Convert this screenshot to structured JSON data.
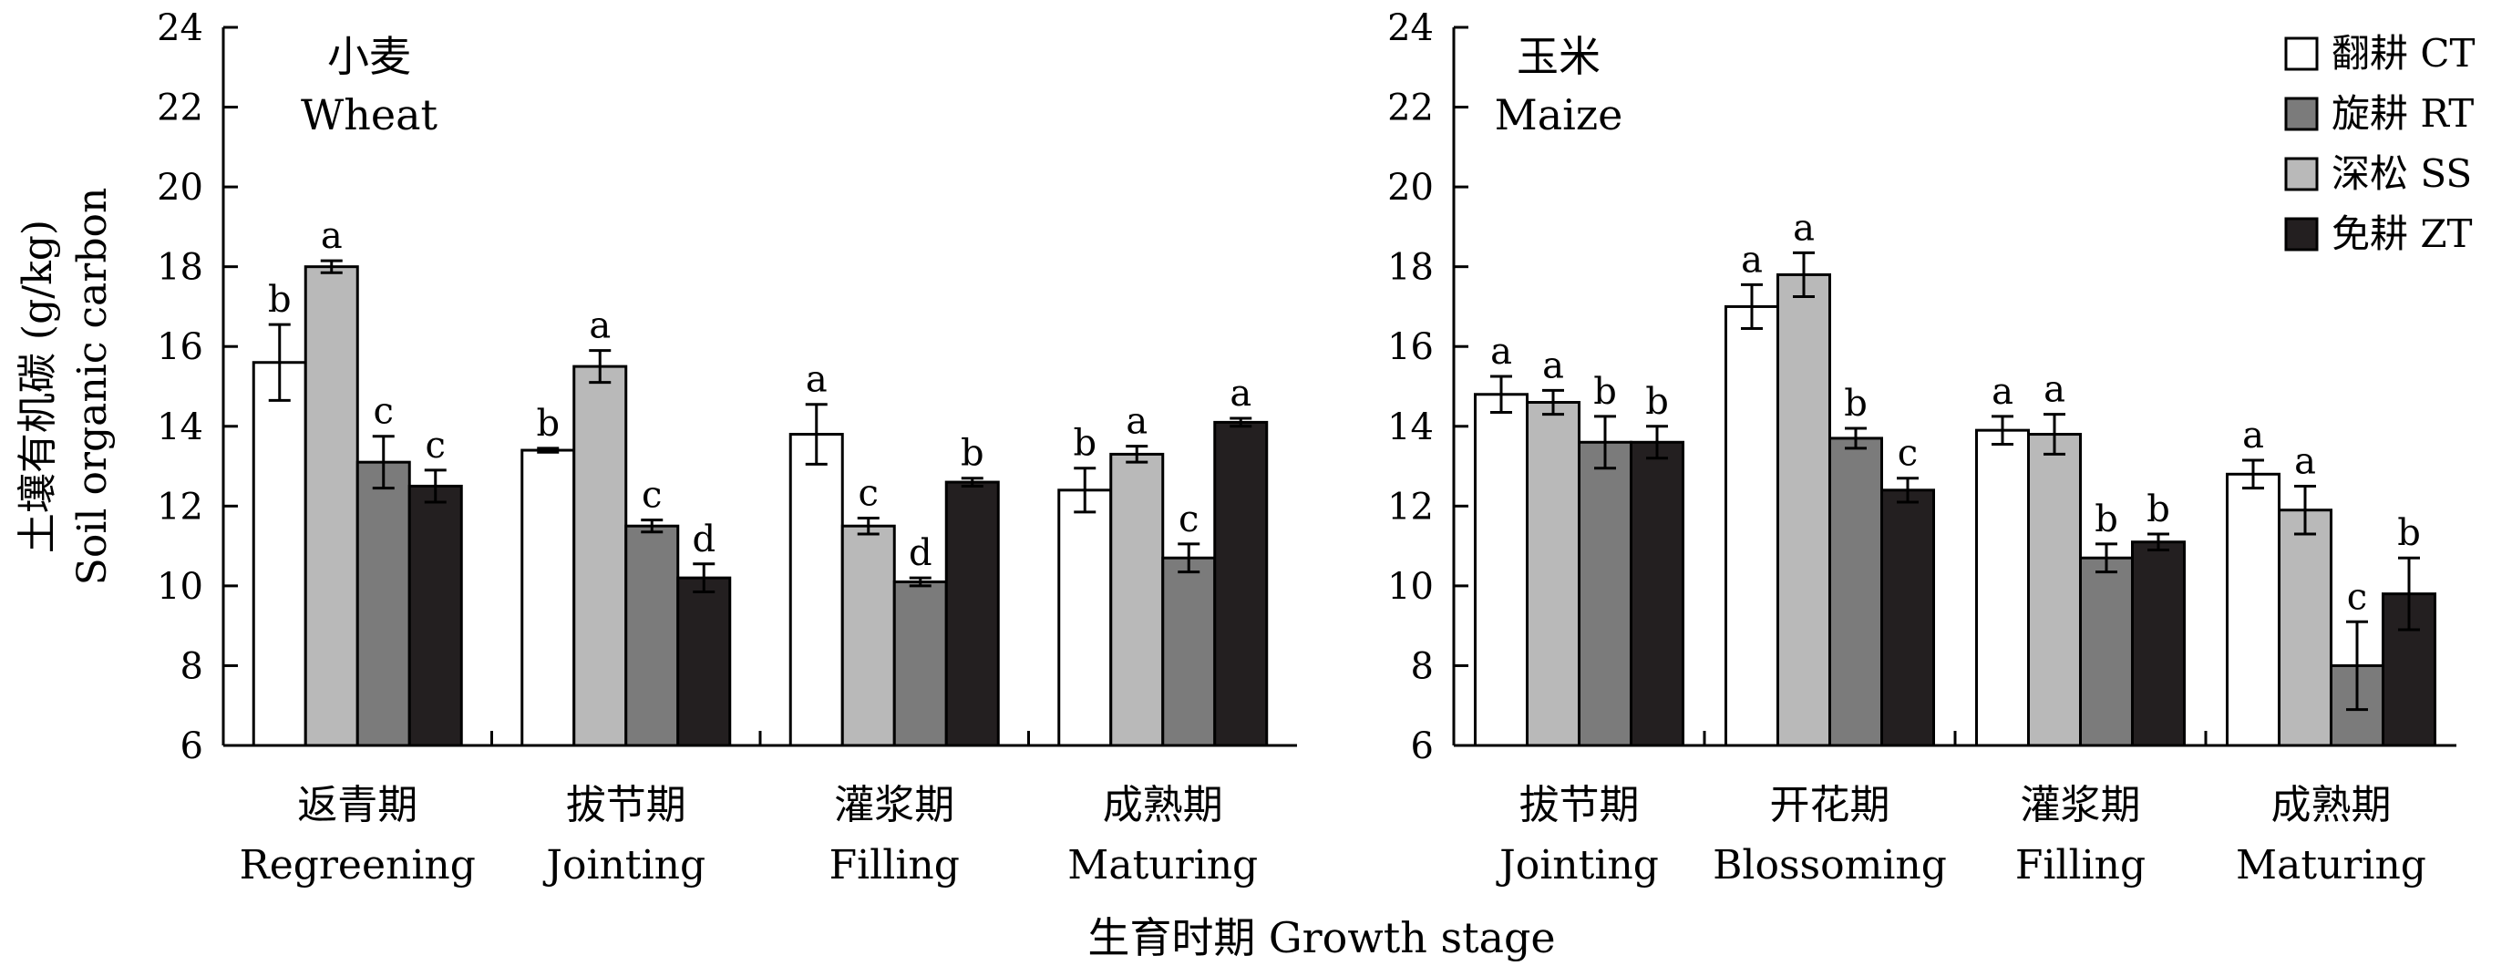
{
  "chart_data": [
    {
      "type": "bar",
      "title": "小麦",
      "subtitle": "Wheat",
      "ylabel_cn": "土壤有机碳 (g/kg)",
      "ylabel_en": "Soil organic carbon",
      "ylim": [
        6,
        24
      ],
      "yticks": [
        6,
        8,
        10,
        12,
        14,
        16,
        18,
        20,
        22,
        24
      ],
      "categories_cn": [
        "返青期",
        "拔节期",
        "灌浆期",
        "成熟期"
      ],
      "categories_en": [
        "Regreening",
        "Jointing",
        "Filling",
        "Maturing"
      ],
      "series": [
        {
          "name": "翻耕 CT",
          "color": "#ffffff",
          "values": [
            15.6,
            13.4,
            13.8,
            12.4
          ],
          "errors": [
            0.95,
            0.05,
            0.75,
            0.55
          ],
          "letters": [
            "b",
            "b",
            "a",
            "b"
          ]
        },
        {
          "name": "深松 SS",
          "color": "#b9b9b9",
          "values": [
            18.0,
            15.5,
            11.5,
            13.3
          ],
          "errors": [
            0.15,
            0.4,
            0.2,
            0.2
          ],
          "letters": [
            "a",
            "a",
            "c",
            "a"
          ]
        },
        {
          "name": "旋耕 RT",
          "color": "#7b7b7b",
          "values": [
            13.1,
            11.5,
            10.1,
            10.7
          ],
          "errors": [
            0.65,
            0.15,
            0.1,
            0.35
          ],
          "letters": [
            "c",
            "c",
            "d",
            "c"
          ]
        },
        {
          "name": "免耕 ZT",
          "color": "#231f20",
          "values": [
            12.5,
            10.2,
            12.6,
            14.1
          ],
          "errors": [
            0.4,
            0.35,
            0.1,
            0.1
          ],
          "letters": [
            "c",
            "d",
            "b",
            "a"
          ]
        }
      ]
    },
    {
      "type": "bar",
      "title": "玉米",
      "subtitle": "Maize",
      "ylim": [
        6,
        24
      ],
      "yticks": [
        6,
        8,
        10,
        12,
        14,
        16,
        18,
        20,
        22,
        24
      ],
      "categories_cn": [
        "拔节期",
        "开花期",
        "灌浆期",
        "成熟期"
      ],
      "categories_en": [
        "Jointing",
        "Blossoming",
        "Filling",
        "Maturing"
      ],
      "series": [
        {
          "name": "翻耕 CT",
          "color": "#ffffff",
          "values": [
            14.8,
            17.0,
            13.9,
            12.8
          ],
          "errors": [
            0.45,
            0.55,
            0.35,
            0.35
          ],
          "letters": [
            "a",
            "a",
            "a",
            "a"
          ]
        },
        {
          "name": "深松 SS",
          "color": "#b9b9b9",
          "values": [
            14.6,
            17.8,
            13.8,
            11.9
          ],
          "errors": [
            0.3,
            0.55,
            0.5,
            0.6
          ],
          "letters": [
            "a",
            "a",
            "a",
            "a"
          ]
        },
        {
          "name": "旋耕 RT",
          "color": "#7b7b7b",
          "values": [
            13.6,
            13.7,
            10.7,
            8.0
          ],
          "errors": [
            0.65,
            0.25,
            0.35,
            1.1
          ],
          "letters": [
            "b",
            "b",
            "b",
            "c"
          ]
        },
        {
          "name": "免耕 ZT",
          "color": "#231f20",
          "values": [
            13.6,
            12.4,
            11.1,
            9.8
          ],
          "errors": [
            0.4,
            0.3,
            0.2,
            0.9
          ],
          "letters": [
            "b",
            "c",
            "b",
            "b"
          ]
        }
      ]
    }
  ],
  "legend": {
    "placement": "top-right",
    "items": [
      {
        "label": "翻耕 CT",
        "color": "#ffffff"
      },
      {
        "label": "旋耕 RT",
        "color": "#7b7b7b"
      },
      {
        "label": "深松 SS",
        "color": "#b9b9b9"
      },
      {
        "label": "免耕 ZT",
        "color": "#231f20"
      }
    ]
  },
  "xlabel": "生育时期 Growth stage"
}
